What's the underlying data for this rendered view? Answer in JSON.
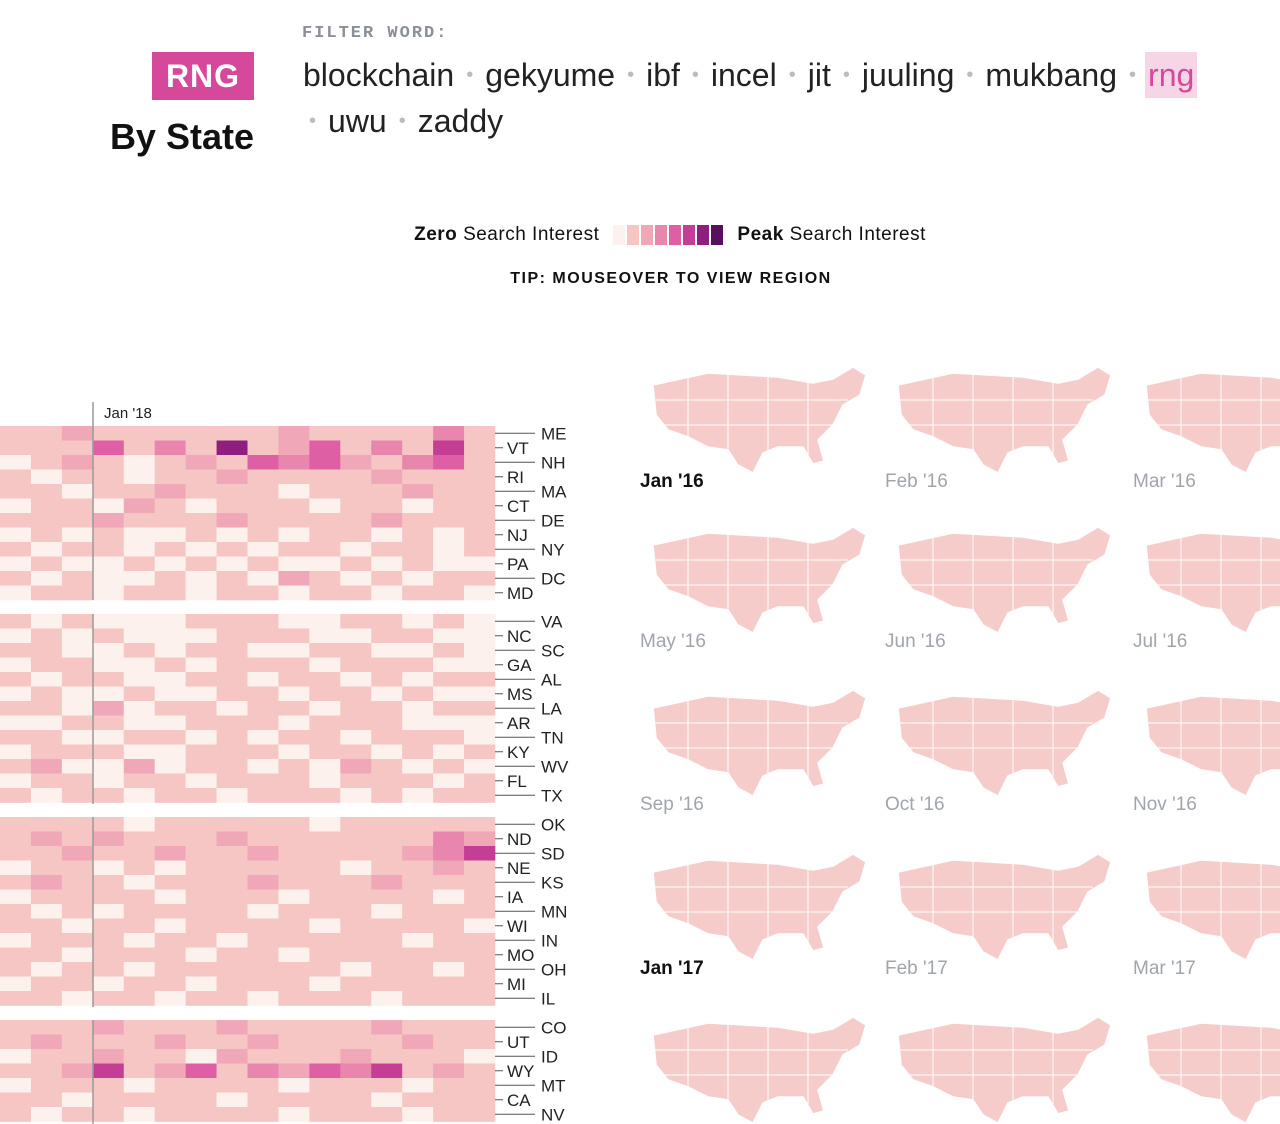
{
  "header": {
    "badge": "RNG",
    "subtitle": "By State",
    "filter_label": "FILTER WORD:",
    "words": [
      "blockchain",
      "gekyume",
      "ibf",
      "incel",
      "jit",
      "juuling",
      "mukbang",
      "rng",
      "uwu",
      "zaddy"
    ],
    "selected": 7
  },
  "legend": {
    "zero_bold": "Zero",
    "zero_rest": "Search Interest",
    "peak_bold": "Peak",
    "peak_rest": "Search Interest"
  },
  "tip": "TIP: MOUSEOVER TO VIEW REGION",
  "heatmap": {
    "marker_label": "Jan '18",
    "colors": [
      "#fdf1ee",
      "#f5c6c3",
      "#f0a8b8",
      "#e986ad",
      "#de5fa4",
      "#c43e96",
      "#8e1f7f",
      "#5a0f5e"
    ],
    "groups": [
      {
        "rows": [
          {
            "state": "ME",
            "levels": [
              1,
              1,
              2,
              1,
              1,
              1,
              1,
              1,
              1,
              2,
              1,
              1,
              1,
              1,
              3,
              1
            ]
          },
          {
            "state": "VT",
            "levels": [
              1,
              1,
              1,
              4,
              1,
              3,
              1,
              6,
              1,
              2,
              4,
              1,
              3,
              1,
              5,
              1
            ]
          },
          {
            "state": "NH",
            "levels": [
              0,
              1,
              2,
              1,
              0,
              1,
              2,
              1,
              4,
              3,
              4,
              2,
              1,
              3,
              4,
              1
            ]
          },
          {
            "state": "RI",
            "levels": [
              1,
              0,
              1,
              1,
              0,
              1,
              1,
              2,
              1,
              1,
              1,
              1,
              2,
              1,
              1,
              1
            ]
          },
          {
            "state": "MA",
            "levels": [
              1,
              1,
              0,
              1,
              1,
              2,
              1,
              1,
              1,
              0,
              1,
              1,
              1,
              2,
              1,
              1
            ]
          },
          {
            "state": "CT",
            "levels": [
              0,
              1,
              1,
              0,
              2,
              1,
              0,
              1,
              1,
              1,
              0,
              1,
              1,
              0,
              1,
              1
            ]
          },
          {
            "state": "DE",
            "levels": [
              1,
              1,
              1,
              2,
              1,
              1,
              1,
              2,
              1,
              1,
              1,
              1,
              2,
              1,
              1,
              1
            ]
          },
          {
            "state": "NJ",
            "levels": [
              0,
              1,
              0,
              1,
              0,
              0,
              1,
              0,
              1,
              0,
              1,
              1,
              0,
              1,
              0,
              1
            ]
          },
          {
            "state": "NY",
            "levels": [
              1,
              0,
              1,
              1,
              0,
              1,
              0,
              1,
              0,
              1,
              1,
              0,
              1,
              1,
              0,
              1
            ]
          },
          {
            "state": "PA",
            "levels": [
              0,
              1,
              0,
              0,
              1,
              0,
              1,
              0,
              1,
              0,
              0,
              1,
              0,
              1,
              0,
              0
            ]
          },
          {
            "state": "DC",
            "levels": [
              1,
              0,
              1,
              0,
              0,
              1,
              0,
              1,
              0,
              2,
              1,
              0,
              1,
              0,
              1,
              1
            ]
          },
          {
            "state": "MD",
            "levels": [
              0,
              1,
              1,
              0,
              1,
              1,
              0,
              1,
              1,
              0,
              1,
              1,
              0,
              1,
              1,
              0
            ]
          }
        ]
      },
      {
        "rows": [
          {
            "state": "VA",
            "levels": [
              1,
              0,
              1,
              0,
              0,
              0,
              1,
              1,
              1,
              0,
              0,
              1,
              1,
              0,
              1,
              0
            ]
          },
          {
            "state": "NC",
            "levels": [
              0,
              1,
              0,
              1,
              0,
              0,
              0,
              1,
              1,
              1,
              0,
              0,
              1,
              1,
              0,
              0
            ]
          },
          {
            "state": "SC",
            "levels": [
              1,
              1,
              0,
              0,
              1,
              0,
              1,
              1,
              0,
              0,
              1,
              1,
              0,
              0,
              1,
              0
            ]
          },
          {
            "state": "GA",
            "levels": [
              0,
              1,
              1,
              0,
              0,
              1,
              0,
              1,
              1,
              1,
              0,
              1,
              1,
              1,
              0,
              0
            ]
          },
          {
            "state": "AL",
            "levels": [
              1,
              0,
              1,
              1,
              0,
              0,
              1,
              1,
              0,
              1,
              1,
              0,
              1,
              0,
              1,
              1
            ]
          },
          {
            "state": "MS",
            "levels": [
              0,
              1,
              0,
              0,
              1,
              0,
              0,
              1,
              1,
              0,
              1,
              1,
              0,
              1,
              0,
              0
            ]
          },
          {
            "state": "LA",
            "levels": [
              1,
              1,
              0,
              2,
              0,
              1,
              1,
              0,
              1,
              1,
              0,
              1,
              1,
              0,
              1,
              1
            ]
          },
          {
            "state": "AR",
            "levels": [
              0,
              0,
              1,
              1,
              0,
              0,
              1,
              1,
              1,
              0,
              1,
              1,
              1,
              0,
              0,
              0
            ]
          },
          {
            "state": "TN",
            "levels": [
              1,
              1,
              0,
              0,
              1,
              1,
              0,
              1,
              0,
              1,
              1,
              0,
              1,
              1,
              1,
              0
            ]
          },
          {
            "state": "KY",
            "levels": [
              0,
              1,
              1,
              1,
              0,
              0,
              1,
              1,
              1,
              0,
              1,
              1,
              0,
              1,
              0,
              1
            ]
          },
          {
            "state": "WV",
            "levels": [
              1,
              2,
              0,
              0,
              2,
              0,
              1,
              1,
              0,
              1,
              0,
              2,
              1,
              0,
              1,
              0
            ]
          },
          {
            "state": "FL",
            "levels": [
              0,
              1,
              1,
              0,
              1,
              1,
              0,
              1,
              1,
              1,
              0,
              1,
              1,
              1,
              0,
              1
            ]
          },
          {
            "state": "TX",
            "levels": [
              1,
              0,
              1,
              1,
              0,
              1,
              1,
              0,
              1,
              1,
              1,
              0,
              1,
              0,
              1,
              1
            ]
          }
        ]
      },
      {
        "rows": [
          {
            "state": "OK",
            "levels": [
              1,
              1,
              1,
              1,
              0,
              1,
              1,
              1,
              1,
              1,
              0,
              1,
              1,
              1,
              1,
              1
            ]
          },
          {
            "state": "ND",
            "levels": [
              1,
              2,
              1,
              2,
              1,
              1,
              1,
              2,
              1,
              1,
              1,
              1,
              1,
              1,
              3,
              2
            ]
          },
          {
            "state": "SD",
            "levels": [
              1,
              1,
              2,
              1,
              1,
              2,
              1,
              1,
              2,
              1,
              1,
              1,
              1,
              2,
              3,
              5
            ]
          },
          {
            "state": "NE",
            "levels": [
              0,
              1,
              1,
              0,
              1,
              0,
              1,
              1,
              1,
              1,
              1,
              0,
              1,
              1,
              2,
              1
            ]
          },
          {
            "state": "KS",
            "levels": [
              1,
              2,
              1,
              1,
              0,
              1,
              1,
              1,
              2,
              1,
              1,
              1,
              2,
              1,
              1,
              1
            ]
          },
          {
            "state": "IA",
            "levels": [
              0,
              1,
              1,
              1,
              1,
              0,
              1,
              1,
              1,
              0,
              1,
              1,
              1,
              1,
              0,
              1
            ]
          },
          {
            "state": "MN",
            "levels": [
              1,
              0,
              1,
              0,
              1,
              1,
              1,
              1,
              0,
              1,
              1,
              1,
              0,
              1,
              1,
              1
            ]
          },
          {
            "state": "WI",
            "levels": [
              1,
              1,
              0,
              1,
              1,
              0,
              1,
              1,
              1,
              1,
              0,
              1,
              1,
              1,
              1,
              0
            ]
          },
          {
            "state": "IN",
            "levels": [
              0,
              1,
              1,
              1,
              0,
              1,
              1,
              0,
              1,
              1,
              1,
              1,
              1,
              0,
              1,
              1
            ]
          },
          {
            "state": "MO",
            "levels": [
              1,
              1,
              0,
              1,
              1,
              1,
              0,
              1,
              1,
              0,
              1,
              1,
              1,
              1,
              1,
              1
            ]
          },
          {
            "state": "OH",
            "levels": [
              1,
              0,
              1,
              1,
              0,
              1,
              1,
              1,
              1,
              1,
              1,
              0,
              1,
              1,
              0,
              1
            ]
          },
          {
            "state": "MI",
            "levels": [
              0,
              1,
              1,
              0,
              1,
              1,
              0,
              1,
              1,
              1,
              0,
              1,
              1,
              1,
              1,
              1
            ]
          },
          {
            "state": "IL",
            "levels": [
              1,
              1,
              0,
              1,
              1,
              0,
              1,
              1,
              0,
              1,
              1,
              1,
              0,
              1,
              1,
              1
            ]
          }
        ]
      },
      {
        "rows": [
          {
            "state": "CO",
            "levels": [
              1,
              1,
              1,
              2,
              1,
              1,
              1,
              2,
              1,
              1,
              1,
              1,
              2,
              1,
              1,
              1
            ]
          },
          {
            "state": "UT",
            "levels": [
              1,
              2,
              1,
              1,
              1,
              2,
              1,
              1,
              2,
              1,
              1,
              1,
              1,
              2,
              1,
              1
            ]
          },
          {
            "state": "ID",
            "levels": [
              0,
              1,
              1,
              2,
              1,
              1,
              0,
              2,
              1,
              1,
              1,
              2,
              1,
              1,
              1,
              0
            ]
          },
          {
            "state": "WY",
            "levels": [
              1,
              1,
              2,
              5,
              1,
              2,
              4,
              1,
              3,
              2,
              4,
              3,
              5,
              1,
              2,
              1
            ]
          },
          {
            "state": "MT",
            "levels": [
              0,
              1,
              1,
              1,
              0,
              1,
              1,
              1,
              1,
              0,
              1,
              1,
              1,
              0,
              1,
              1
            ]
          },
          {
            "state": "CA",
            "levels": [
              1,
              1,
              0,
              1,
              1,
              1,
              1,
              0,
              1,
              1,
              1,
              1,
              0,
              1,
              1,
              1
            ]
          },
          {
            "state": "NV",
            "levels": [
              1,
              0,
              1,
              1,
              0,
              1,
              1,
              1,
              1,
              0,
              1,
              1,
              1,
              0,
              1,
              1
            ]
          }
        ]
      }
    ]
  },
  "maps": [
    {
      "label": "Jan '16",
      "highlight": true
    },
    {
      "label": "Feb '16",
      "highlight": false
    },
    {
      "label": "Mar '16",
      "highlight": false
    },
    {
      "label": "May '16",
      "highlight": false
    },
    {
      "label": "Jun '16",
      "highlight": false
    },
    {
      "label": "Jul '16",
      "highlight": false
    },
    {
      "label": "Sep '16",
      "highlight": false
    },
    {
      "label": "Oct '16",
      "highlight": false
    },
    {
      "label": "Nov '16",
      "highlight": false
    },
    {
      "label": "Jan '17",
      "highlight": true
    },
    {
      "label": "Feb '17",
      "highlight": false
    },
    {
      "label": "Mar '17",
      "highlight": false
    }
  ]
}
